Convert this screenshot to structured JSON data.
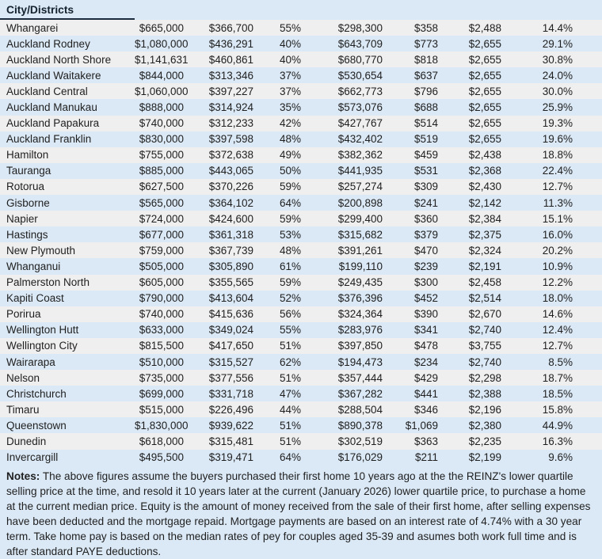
{
  "colors": {
    "page_bg": "#dbe9f6",
    "stripe_bg": "#efefef",
    "header_border": "#1c2b3d",
    "header_text": "#14202e",
    "text": "#1f1f1f"
  },
  "chart_data": {
    "type": "table",
    "header": "City/Districts",
    "visible_column_headers": [
      "City/Districts"
    ],
    "rows": [
      [
        "Whangarei",
        "$665,000",
        "$366,700",
        "55%",
        "$298,300",
        "$358",
        "$2,488",
        "14.4%"
      ],
      [
        "Auckland Rodney",
        "$1,080,000",
        "$436,291",
        "40%",
        "$643,709",
        "$773",
        "$2,655",
        "29.1%"
      ],
      [
        "Auckland North Shore",
        "$1,141,631",
        "$460,861",
        "40%",
        "$680,770",
        "$818",
        "$2,655",
        "30.8%"
      ],
      [
        "Auckland Waitakere",
        "$844,000",
        "$313,346",
        "37%",
        "$530,654",
        "$637",
        "$2,655",
        "24.0%"
      ],
      [
        "Auckland Central",
        "$1,060,000",
        "$397,227",
        "37%",
        "$662,773",
        "$796",
        "$2,655",
        "30.0%"
      ],
      [
        "Auckland Manukau",
        "$888,000",
        "$314,924",
        "35%",
        "$573,076",
        "$688",
        "$2,655",
        "25.9%"
      ],
      [
        "Auckland Papakura",
        "$740,000",
        "$312,233",
        "42%",
        "$427,767",
        "$514",
        "$2,655",
        "19.3%"
      ],
      [
        "Auckland Franklin",
        "$830,000",
        "$397,598",
        "48%",
        "$432,402",
        "$519",
        "$2,655",
        "19.6%"
      ],
      [
        "Hamilton",
        "$755,000",
        "$372,638",
        "49%",
        "$382,362",
        "$459",
        "$2,438",
        "18.8%"
      ],
      [
        "Tauranga",
        "$885,000",
        "$443,065",
        "50%",
        "$441,935",
        "$531",
        "$2,368",
        "22.4%"
      ],
      [
        "Rotorua",
        "$627,500",
        "$370,226",
        "59%",
        "$257,274",
        "$309",
        "$2,430",
        "12.7%"
      ],
      [
        "Gisborne",
        "$565,000",
        "$364,102",
        "64%",
        "$200,898",
        "$241",
        "$2,142",
        "11.3%"
      ],
      [
        "Napier",
        "$724,000",
        "$424,600",
        "59%",
        "$299,400",
        "$360",
        "$2,384",
        "15.1%"
      ],
      [
        "Hastings",
        "$677,000",
        "$361,318",
        "53%",
        "$315,682",
        "$379",
        "$2,375",
        "16.0%"
      ],
      [
        "New Plymouth",
        "$759,000",
        "$367,739",
        "48%",
        "$391,261",
        "$470",
        "$2,324",
        "20.2%"
      ],
      [
        "Whanganui",
        "$505,000",
        "$305,890",
        "61%",
        "$199,110",
        "$239",
        "$2,191",
        "10.9%"
      ],
      [
        "Palmerston North",
        "$605,000",
        "$355,565",
        "59%",
        "$249,435",
        "$300",
        "$2,458",
        "12.2%"
      ],
      [
        "Kapiti Coast",
        "$790,000",
        "$413,604",
        "52%",
        "$376,396",
        "$452",
        "$2,514",
        "18.0%"
      ],
      [
        "Porirua",
        "$740,000",
        "$415,636",
        "56%",
        "$324,364",
        "$390",
        "$2,670",
        "14.6%"
      ],
      [
        "Wellington Hutt",
        "$633,000",
        "$349,024",
        "55%",
        "$283,976",
        "$341",
        "$2,740",
        "12.4%"
      ],
      [
        "Wellington City",
        "$815,500",
        "$417,650",
        "51%",
        "$397,850",
        "$478",
        "$3,755",
        "12.7%"
      ],
      [
        "Wairarapa",
        "$510,000",
        "$315,527",
        "62%",
        "$194,473",
        "$234",
        "$2,740",
        "8.5%"
      ],
      [
        "Nelson",
        "$735,000",
        "$377,556",
        "51%",
        "$357,444",
        "$429",
        "$2,298",
        "18.7%"
      ],
      [
        "Christchurch",
        "$699,000",
        "$331,718",
        "47%",
        "$367,282",
        "$441",
        "$2,388",
        "18.5%"
      ],
      [
        "Timaru",
        "$515,000",
        "$226,496",
        "44%",
        "$288,504",
        "$346",
        "$2,196",
        "15.8%"
      ],
      [
        "Queenstown",
        "$1,830,000",
        "$939,622",
        "51%",
        "$890,378",
        "$1,069",
        "$2,380",
        "44.9%"
      ],
      [
        "Dunedin",
        "$618,000",
        "$315,481",
        "51%",
        "$302,519",
        "$363",
        "$2,235",
        "16.3%"
      ],
      [
        "Invercargill",
        "$495,500",
        "$319,471",
        "64%",
        "$176,029",
        "$211",
        "$2,199",
        "9.6%"
      ]
    ]
  },
  "notes": {
    "label": "Notes:",
    "text": " The above figures assume the buyers purchased their first home 10 years ago at the the REINZ's lower quartile selling price at the time, and resold it 10 years later at the current (January 2026) lower quartile price, to purchase a home at the current median price. Equity is the amount of money received from the sale of their first home, after selling expenses have been deducted and the mortgage repaid. Mortgage payments are based on an interest rate of 4.74% with a 30 year term. Take home pay is based on the median rates of pey for couples aged 35-39 and asumes both work full time and is after standard PAYE deductions."
  }
}
